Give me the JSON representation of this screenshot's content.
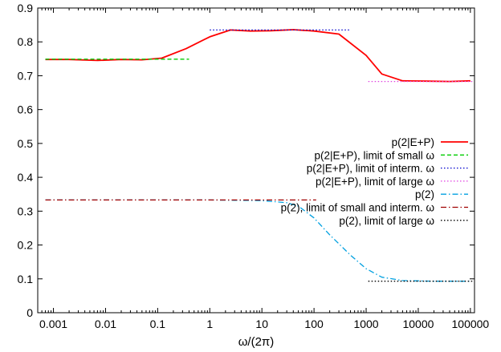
{
  "chart_data": {
    "type": "line",
    "xlabel": "ω/(2π)",
    "ylabel": "",
    "title": "",
    "xscale": "log",
    "xlim": [
      0.0005,
      120000
    ],
    "ylim": [
      0,
      0.9
    ],
    "x_ticks": [
      {
        "value": 0.001,
        "label": "0.001"
      },
      {
        "value": 0.01,
        "label": "0.01"
      },
      {
        "value": 0.1,
        "label": "0.1"
      },
      {
        "value": 1,
        "label": "1"
      },
      {
        "value": 10,
        "label": "10"
      },
      {
        "value": 100,
        "label": "100"
      },
      {
        "value": 1000,
        "label": "1000"
      },
      {
        "value": 10000,
        "label": "10000"
      },
      {
        "value": 100000,
        "label": "100000"
      }
    ],
    "y_ticks": [
      {
        "value": 0,
        "label": "0"
      },
      {
        "value": 0.1,
        "label": "0.1"
      },
      {
        "value": 0.2,
        "label": "0.2"
      },
      {
        "value": 0.3,
        "label": "0.3"
      },
      {
        "value": 0.4,
        "label": "0.4"
      },
      {
        "value": 0.5,
        "label": "0.5"
      },
      {
        "value": 0.6,
        "label": "0.6"
      },
      {
        "value": 0.7,
        "label": "0.7"
      },
      {
        "value": 0.8,
        "label": "0.8"
      },
      {
        "value": 0.9,
        "label": "0.9"
      }
    ],
    "grid": false,
    "legend_position": "center-right",
    "series": [
      {
        "name": "p(2|E+P)",
        "color": "#ff0000",
        "style": "solid",
        "x": [
          0.0007,
          0.002,
          0.007,
          0.02,
          0.05,
          0.12,
          0.35,
          1,
          2.5,
          6,
          15,
          40,
          100,
          300,
          1000,
          2000,
          5000,
          15000,
          40000,
          100000
        ],
        "y": [
          0.748,
          0.748,
          0.745,
          0.748,
          0.747,
          0.752,
          0.78,
          0.815,
          0.835,
          0.832,
          0.833,
          0.836,
          0.832,
          0.823,
          0.76,
          0.705,
          0.685,
          0.684,
          0.683,
          0.685
        ]
      },
      {
        "name": "p(2|E+P), limit of small ω",
        "color": "#00cc00",
        "style": "dashed",
        "x": [
          0.0007,
          0.4
        ],
        "y": [
          0.749,
          0.749
        ]
      },
      {
        "name": "p(2|E+P), limit of interm. ω",
        "color": "#0000cc",
        "style": "dotted",
        "x": [
          1,
          500
        ],
        "y": [
          0.835,
          0.835
        ]
      },
      {
        "name": "p(2|E+P), limit of large ω",
        "color": "#e040e0",
        "style": "dotted",
        "x": [
          1100,
          110000
        ],
        "y": [
          0.683,
          0.683
        ]
      },
      {
        "name": "p(2)",
        "color": "#00a0e0",
        "style": "dashdot",
        "x": [
          0.0007,
          0.002,
          0.01,
          0.05,
          0.2,
          1,
          3,
          10,
          30,
          50,
          100,
          200,
          500,
          1000,
          2000,
          5000,
          20000,
          100000
        ],
        "y": [
          0.333,
          0.333,
          0.333,
          0.333,
          0.333,
          0.333,
          0.332,
          0.331,
          0.325,
          0.315,
          0.28,
          0.23,
          0.17,
          0.13,
          0.105,
          0.095,
          0.093,
          0.093
        ]
      },
      {
        "name": "p(2), limit of small and interm. ω",
        "color": "#a00000",
        "style": "dashdot",
        "x": [
          0.0007,
          110
        ],
        "y": [
          0.333,
          0.333
        ]
      },
      {
        "name": "p(2), limit of large ω",
        "color": "#000000",
        "style": "dotted",
        "x": [
          1100,
          110000
        ],
        "y": [
          0.093,
          0.093
        ]
      }
    ]
  }
}
